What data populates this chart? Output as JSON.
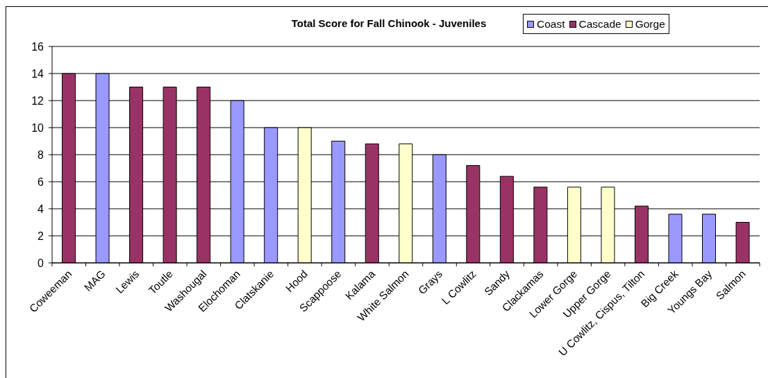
{
  "chart_data": {
    "type": "bar",
    "title": "Total Score for Fall Chinook - Juveniles",
    "categories": [
      "Coweeman",
      "MAG",
      "Lewis",
      "Toutle",
      "Washougal",
      "Elochoman",
      "Clatskanie",
      "Hood",
      "Scappoose",
      "Kalama",
      "White Salmon",
      "Grays",
      "L Cowlitz",
      "Sandy",
      "Clackamas",
      "Lower Gorge",
      "Upper Gorge",
      "U Cowlitz, Cispus, Tilton",
      "Big Creek",
      "Youngs Bay",
      "Salmon"
    ],
    "series": [
      {
        "name": "Coast",
        "color": "#9999ff",
        "values": [
          null,
          14,
          null,
          null,
          null,
          12,
          10,
          null,
          9,
          null,
          null,
          8,
          null,
          null,
          null,
          null,
          null,
          null,
          3.6,
          3.6,
          null
        ]
      },
      {
        "name": "Cascade",
        "color": "#993366",
        "values": [
          14,
          null,
          13,
          13,
          13,
          null,
          null,
          null,
          null,
          8.8,
          null,
          null,
          7.2,
          6.4,
          5.6,
          null,
          null,
          4.2,
          null,
          null,
          3
        ]
      },
      {
        "name": "Gorge",
        "color": "#ffffcc",
        "values": [
          null,
          null,
          null,
          null,
          null,
          null,
          null,
          10,
          null,
          null,
          8.8,
          null,
          null,
          null,
          null,
          5.6,
          5.6,
          null,
          null,
          null,
          null
        ]
      }
    ],
    "stacked": true,
    "ylim": [
      0,
      16
    ],
    "yticks": [
      0,
      2,
      4,
      6,
      8,
      10,
      12,
      14,
      16
    ],
    "grid": "y",
    "legend": "top right"
  }
}
